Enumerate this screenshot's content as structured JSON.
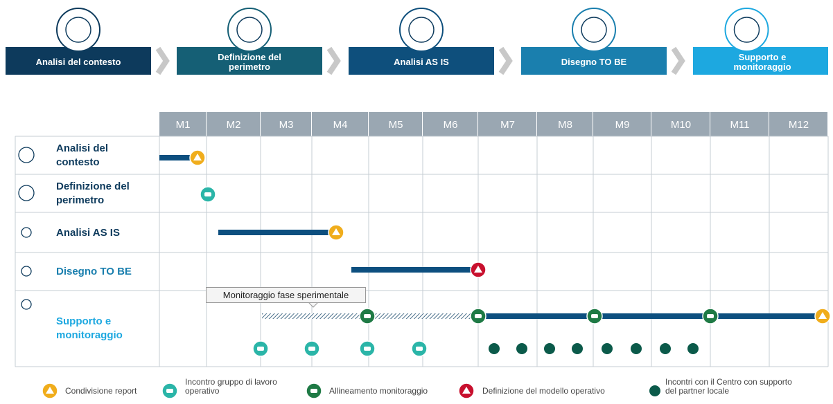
{
  "phases": [
    {
      "label": "Analisi del contesto"
    },
    {
      "label": "Definizione del perimetro"
    },
    {
      "label": "Analisi AS IS"
    },
    {
      "label": "Disegno TO BE"
    },
    {
      "label": "Supporto e monitoraggio"
    }
  ],
  "timeline": {
    "months": [
      "M1",
      "M2",
      "M3",
      "M4",
      "M5",
      "M6",
      "M7",
      "M8",
      "M9",
      "M10",
      "M11",
      "M12"
    ],
    "rows": [
      {
        "label": "Analisi del contesto"
      },
      {
        "label": "Definizione del perimetro"
      },
      {
        "label": "Analisi AS IS"
      },
      {
        "label": "Disegno TO BE"
      },
      {
        "label": "Supporto e monitoraggio"
      }
    ],
    "tooltip": "Monitoraggio fase sperimentale"
  },
  "legend": [
    {
      "label": "Condivisione report"
    },
    {
      "label": "Incontro gruppo di lavoro operativo"
    },
    {
      "label": "Allineamento monitoraggio"
    },
    {
      "label": "Definizione del modello operativo"
    },
    {
      "label": "Incontri con il Centro con supporto del partner locale"
    }
  ]
}
